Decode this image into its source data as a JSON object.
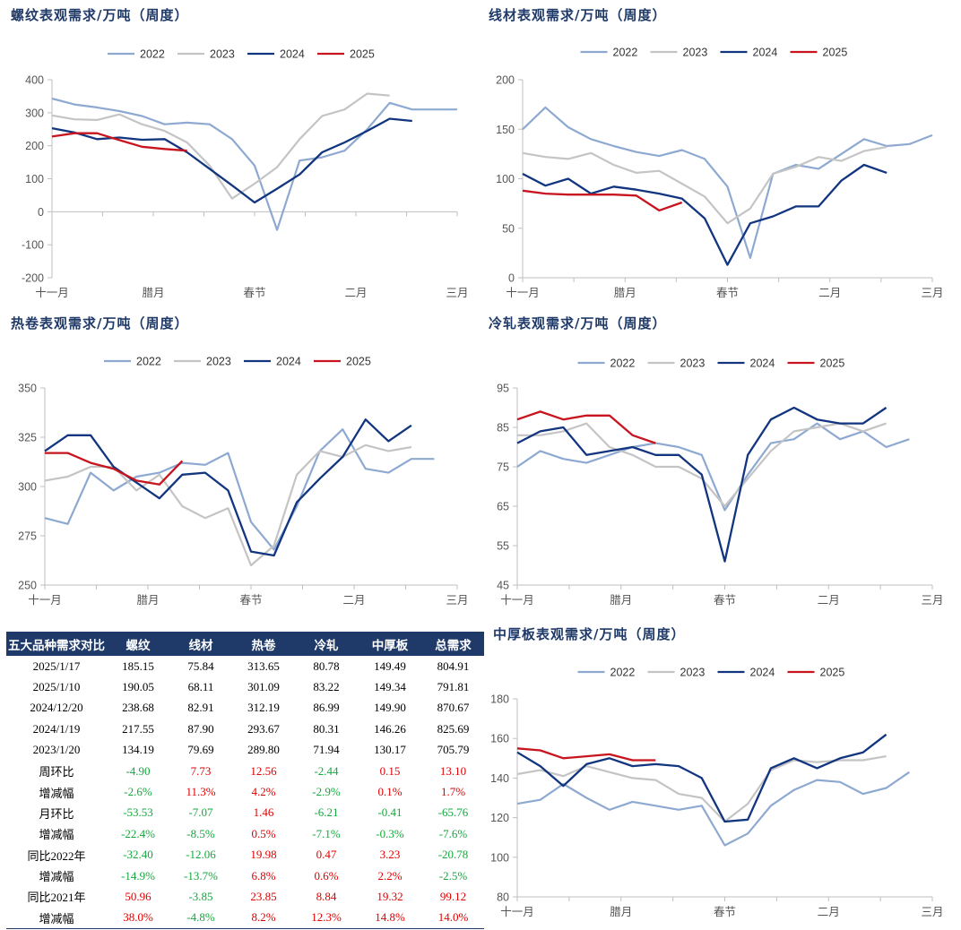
{
  "colors": {
    "2022": "#8ea9d1",
    "2023": "#c4c4c4",
    "2024": "#12357f",
    "2025": "#c8141e",
    "axis": "#bfbfbf",
    "label": "#555555",
    "header_bg": "#1f3a68",
    "up": "#e00000",
    "down": "#13a83c"
  },
  "chart_data": [
    {
      "id": "rebar",
      "type": "line",
      "title": "螺纹表观需求/万吨（周度）",
      "xticklabels": [
        "十一月",
        "腊月",
        "春节",
        "二月",
        "三月"
      ],
      "ylim": [
        -200,
        400
      ],
      "yticks": [
        -200,
        -100,
        0,
        100,
        200,
        300,
        400
      ],
      "series": [
        {
          "name": "2022",
          "values": [
            343,
            325,
            316,
            305,
            290,
            265,
            270,
            265,
            220,
            140,
            -55,
            155,
            165,
            185,
            250,
            330,
            310,
            310,
            310
          ]
        },
        {
          "name": "2023",
          "values": [
            292,
            280,
            278,
            295,
            265,
            245,
            210,
            140,
            40,
            85,
            135,
            220,
            290,
            310,
            358,
            352
          ]
        },
        {
          "name": "2024",
          "values": [
            253,
            240,
            220,
            225,
            218,
            220,
            180,
            130,
            80,
            28,
            70,
            113,
            180,
            210,
            245,
            282,
            275
          ]
        },
        {
          "name": "2025",
          "values": [
            228,
            238,
            238,
            217,
            197,
            190,
            185
          ]
        }
      ]
    },
    {
      "id": "wire",
      "type": "line",
      "title": "线材表观需求/万吨（周度）",
      "xticklabels": [
        "十一月",
        "腊月",
        "春节",
        "二月",
        "三月"
      ],
      "ylim": [
        0,
        200
      ],
      "yticks": [
        0,
        50,
        100,
        150,
        200
      ],
      "series": [
        {
          "name": "2022",
          "values": [
            150,
            172,
            152,
            140,
            133,
            127,
            123,
            129,
            120,
            92,
            20,
            105,
            114,
            110,
            125,
            140,
            133,
            135,
            144
          ]
        },
        {
          "name": "2023",
          "values": [
            126,
            122,
            120,
            126,
            114,
            106,
            108,
            95,
            82,
            55,
            70,
            105,
            112,
            122,
            118,
            128,
            132
          ]
        },
        {
          "name": "2024",
          "values": [
            105,
            93,
            100,
            85,
            92,
            89,
            85,
            80,
            60,
            13,
            55,
            62,
            72,
            72,
            98,
            114,
            106
          ]
        },
        {
          "name": "2025",
          "values": [
            88,
            85,
            84,
            84,
            84,
            83,
            68,
            76
          ]
        }
      ]
    },
    {
      "id": "hrc",
      "type": "line",
      "title": "热卷表观需求/万吨（周度）",
      "xticklabels": [
        "十一月",
        "腊月",
        "春节",
        "二月",
        "三月"
      ],
      "ylim": [
        250,
        350
      ],
      "yticks": [
        250,
        275,
        300,
        325,
        350
      ],
      "series": [
        {
          "name": "2022",
          "values": [
            284,
            281,
            307,
            298,
            305,
            307,
            312,
            311,
            317,
            282,
            268,
            290,
            318,
            329,
            309,
            307,
            314,
            314
          ]
        },
        {
          "name": "2023",
          "values": [
            303,
            305,
            310,
            310,
            298,
            306,
            290,
            284,
            289,
            260,
            270,
            306,
            318,
            315,
            321,
            318,
            320
          ]
        },
        {
          "name": "2024",
          "values": [
            318,
            326,
            326,
            310,
            302,
            294,
            306,
            307,
            298,
            267,
            265,
            292,
            304,
            315,
            334,
            323,
            331
          ]
        },
        {
          "name": "2025",
          "values": [
            317,
            317,
            312,
            309,
            303,
            301,
            313
          ]
        }
      ]
    },
    {
      "id": "crc",
      "type": "line",
      "title": "冷轧表观需求/万吨（周度）",
      "xticklabels": [
        "十一月",
        "腊月",
        "春节",
        "二月",
        "三月"
      ],
      "ylim": [
        45,
        95
      ],
      "yticks": [
        45,
        55,
        65,
        75,
        85,
        95
      ],
      "series": [
        {
          "name": "2022",
          "values": [
            75,
            79,
            77,
            76,
            78,
            80,
            81,
            80,
            78,
            64,
            73,
            81,
            82,
            86,
            82,
            84,
            80,
            82
          ]
        },
        {
          "name": "2023",
          "values": [
            83,
            83,
            84,
            86,
            80,
            78,
            75,
            75,
            72,
            65,
            72,
            79,
            84,
            85,
            86,
            84,
            86
          ]
        },
        {
          "name": "2024",
          "values": [
            81,
            84,
            85,
            78,
            79,
            80,
            78,
            78,
            73,
            51,
            78,
            87,
            90,
            87,
            86,
            86,
            90
          ]
        },
        {
          "name": "2025",
          "values": [
            87,
            89,
            87,
            88,
            88,
            83,
            81
          ]
        }
      ]
    },
    {
      "id": "plate",
      "type": "line",
      "title": "中厚板表观需求/万吨（周度）",
      "xticklabels": [
        "十一月",
        "腊月",
        "春节",
        "二月",
        "三月"
      ],
      "ylim": [
        80,
        180
      ],
      "yticks": [
        80,
        100,
        120,
        140,
        160,
        180
      ],
      "series": [
        {
          "name": "2022",
          "values": [
            127,
            129,
            137,
            130,
            124,
            128,
            126,
            124,
            126,
            106,
            112,
            126,
            134,
            139,
            138,
            132,
            135,
            143
          ]
        },
        {
          "name": "2023",
          "values": [
            142,
            144,
            141,
            146,
            143,
            140,
            139,
            132,
            130,
            118,
            127,
            144,
            149,
            148,
            149,
            149,
            151
          ]
        },
        {
          "name": "2024",
          "values": [
            153,
            146,
            136,
            147,
            150,
            146,
            147,
            146,
            140,
            118,
            119,
            145,
            150,
            145,
            150,
            153,
            162
          ]
        },
        {
          "name": "2025",
          "values": [
            155,
            154,
            150,
            151,
            152,
            149,
            149
          ]
        }
      ]
    }
  ],
  "table": {
    "headers": [
      "五大品种需求对比",
      "螺纹",
      "线材",
      "热卷",
      "冷轧",
      "中厚板",
      "总需求"
    ],
    "rows": [
      [
        "2025/1/17",
        "185.15",
        "75.84",
        "313.65",
        "80.78",
        "149.49",
        "804.91"
      ],
      [
        "2025/1/10",
        "190.05",
        "68.11",
        "301.09",
        "83.22",
        "149.34",
        "791.81"
      ],
      [
        "2024/12/20",
        "238.68",
        "82.91",
        "312.19",
        "86.99",
        "149.90",
        "870.67"
      ],
      [
        "2024/1/19",
        "217.55",
        "87.90",
        "293.67",
        "80.31",
        "146.26",
        "825.69"
      ],
      [
        "2023/1/20",
        "134.19",
        "79.69",
        "289.80",
        "71.94",
        "130.17",
        "705.79"
      ],
      [
        "周环比",
        "-4.90",
        "7.73",
        "12.56",
        "-2.44",
        "0.15",
        "13.10"
      ],
      [
        "增减幅",
        "-2.6%",
        "11.3%",
        "4.2%",
        "-2.9%",
        "0.1%",
        "1.7%"
      ],
      [
        "月环比",
        "-53.53",
        "-7.07",
        "1.46",
        "-6.21",
        "-0.41",
        "-65.76"
      ],
      [
        "增减幅",
        "-22.4%",
        "-8.5%",
        "0.5%",
        "-7.1%",
        "-0.3%",
        "-7.6%"
      ],
      [
        "同比2022年",
        "-32.40",
        "-12.06",
        "19.98",
        "0.47",
        "3.23",
        "-20.78"
      ],
      [
        "增减幅",
        "-14.9%",
        "-13.7%",
        "6.8%",
        "0.6%",
        "2.2%",
        "-2.5%"
      ],
      [
        "同比2021年",
        "50.96",
        "-3.85",
        "23.85",
        "8.84",
        "19.32",
        "99.12"
      ],
      [
        "增减幅",
        "38.0%",
        "-4.8%",
        "8.2%",
        "12.3%",
        "14.8%",
        "14.0%"
      ]
    ]
  }
}
